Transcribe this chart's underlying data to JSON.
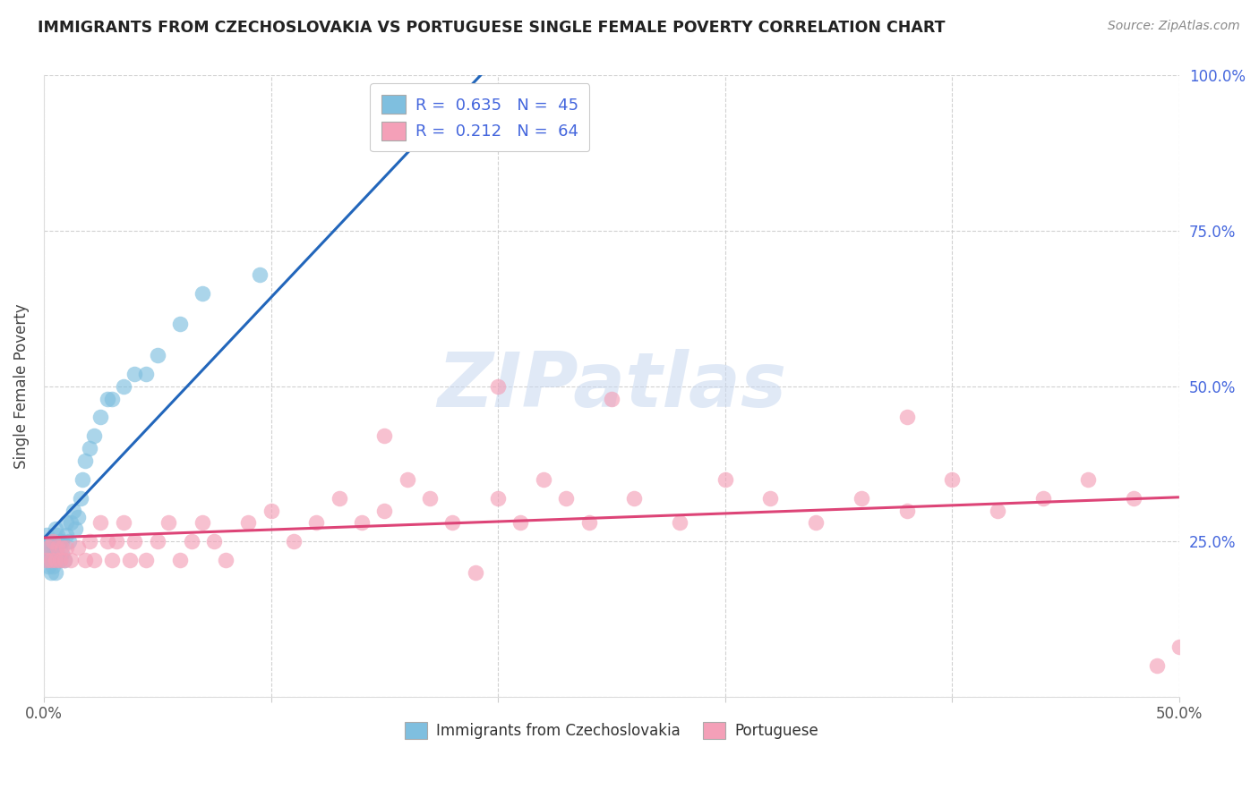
{
  "title": "IMMIGRANTS FROM CZECHOSLOVAKIA VS PORTUGUESE SINGLE FEMALE POVERTY CORRELATION CHART",
  "source": "Source: ZipAtlas.com",
  "ylabel": "Single Female Poverty",
  "blue_color": "#7fbfdf",
  "blue_edge_color": "#5599cc",
  "pink_color": "#f4a0b8",
  "pink_edge_color": "#e06080",
  "blue_line_color": "#2266bb",
  "pink_line_color": "#dd4477",
  "legend_text_color": "#4466dd",
  "right_axis_color": "#4466dd",
  "background_color": "#ffffff",
  "grid_color": "#cccccc",
  "title_color": "#222222",
  "source_color": "#888888",
  "ylabel_color": "#444444",
  "watermark_color": "#c8d8f0",
  "watermark_text": "ZIPatlas",
  "blue_x": [
    0.001,
    0.001,
    0.001,
    0.002,
    0.002,
    0.002,
    0.003,
    0.003,
    0.003,
    0.004,
    0.004,
    0.004,
    0.005,
    0.005,
    0.005,
    0.006,
    0.006,
    0.007,
    0.007,
    0.008,
    0.008,
    0.009,
    0.01,
    0.01,
    0.011,
    0.012,
    0.013,
    0.014,
    0.015,
    0.016,
    0.017,
    0.018,
    0.02,
    0.022,
    0.025,
    0.028,
    0.03,
    0.035,
    0.04,
    0.045,
    0.05,
    0.06,
    0.07,
    0.095,
    0.23
  ],
  "blue_y": [
    0.22,
    0.24,
    0.26,
    0.21,
    0.23,
    0.25,
    0.2,
    0.22,
    0.24,
    0.21,
    0.23,
    0.25,
    0.2,
    0.22,
    0.27,
    0.23,
    0.26,
    0.22,
    0.25,
    0.23,
    0.25,
    0.22,
    0.26,
    0.28,
    0.25,
    0.28,
    0.3,
    0.27,
    0.29,
    0.32,
    0.35,
    0.38,
    0.4,
    0.42,
    0.45,
    0.48,
    0.48,
    0.5,
    0.52,
    0.52,
    0.55,
    0.6,
    0.65,
    0.68,
    0.95
  ],
  "pink_x": [
    0.001,
    0.002,
    0.003,
    0.004,
    0.005,
    0.006,
    0.007,
    0.008,
    0.009,
    0.01,
    0.012,
    0.015,
    0.018,
    0.02,
    0.022,
    0.025,
    0.028,
    0.03,
    0.032,
    0.035,
    0.038,
    0.04,
    0.045,
    0.05,
    0.055,
    0.06,
    0.065,
    0.07,
    0.075,
    0.08,
    0.09,
    0.1,
    0.11,
    0.12,
    0.13,
    0.14,
    0.15,
    0.16,
    0.17,
    0.18,
    0.19,
    0.2,
    0.21,
    0.22,
    0.23,
    0.24,
    0.26,
    0.28,
    0.3,
    0.32,
    0.34,
    0.36,
    0.38,
    0.4,
    0.42,
    0.44,
    0.46,
    0.48,
    0.49,
    0.5,
    0.15,
    0.2,
    0.25,
    0.38
  ],
  "pink_y": [
    0.22,
    0.24,
    0.22,
    0.25,
    0.22,
    0.24,
    0.22,
    0.24,
    0.22,
    0.24,
    0.22,
    0.24,
    0.22,
    0.25,
    0.22,
    0.28,
    0.25,
    0.22,
    0.25,
    0.28,
    0.22,
    0.25,
    0.22,
    0.25,
    0.28,
    0.22,
    0.25,
    0.28,
    0.25,
    0.22,
    0.28,
    0.3,
    0.25,
    0.28,
    0.32,
    0.28,
    0.3,
    0.35,
    0.32,
    0.28,
    0.2,
    0.32,
    0.28,
    0.35,
    0.32,
    0.28,
    0.32,
    0.28,
    0.35,
    0.32,
    0.28,
    0.32,
    0.3,
    0.35,
    0.3,
    0.32,
    0.35,
    0.32,
    0.05,
    0.08,
    0.42,
    0.5,
    0.48,
    0.45
  ]
}
